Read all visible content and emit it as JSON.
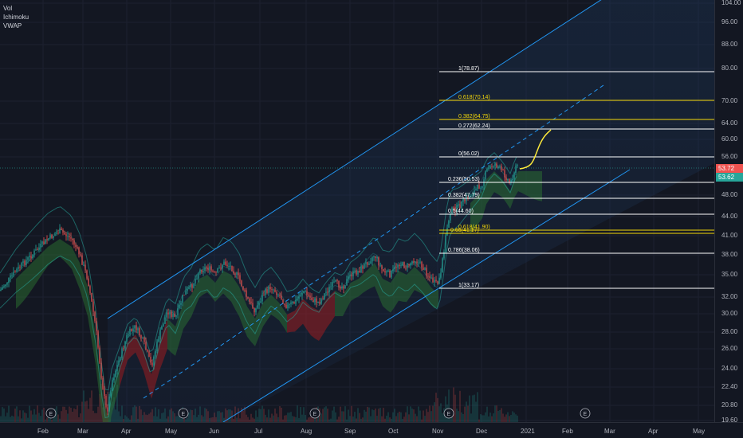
{
  "indicators": [
    "Vol",
    "Ichimoku",
    "VWAP"
  ],
  "price_axis": {
    "ticks": [
      "104.00",
      "96.00",
      "88.00",
      "80.00",
      "70.00",
      "64.00",
      "60.00",
      "56.00",
      "48.00",
      "44.00",
      "41.00",
      "38.00",
      "35.00",
      "32.00",
      "30.00",
      "28.00",
      "26.00",
      "24.00",
      "22.40",
      "20.80",
      "19.60"
    ],
    "last_price": "53.72",
    "last_price_color": "#ef5350",
    "alt_price": "53.62",
    "alt_price_color": "#26a69a"
  },
  "time_axis": {
    "ticks": [
      "Feb",
      "Mar",
      "Apr",
      "May",
      "Jun",
      "Jul",
      "Aug",
      "Sep",
      "Oct",
      "Nov",
      "Dec",
      "2021",
      "Feb",
      "Mar",
      "Apr",
      "May"
    ]
  },
  "event_markers": [
    "E",
    "E",
    "E",
    "E",
    "E"
  ],
  "fib_levels": [
    {
      "label": "1(78.87)",
      "color": "#ffffff"
    },
    {
      "label": "0.618(70.14)",
      "color": "#f5d90a"
    },
    {
      "label": "0.382(64.75)",
      "color": "#f5d90a"
    },
    {
      "label": "0.272(62.24)",
      "color": "#ffffff"
    },
    {
      "label": "0(56.02)",
      "color": "#ffffff"
    },
    {
      "label": "0.236(50.53)",
      "color": "#ffffff"
    },
    {
      "label": "0.382(47.79)",
      "color": "#ffffff"
    },
    {
      "label": "0.5(44.60)",
      "color": "#ffffff"
    },
    {
      "label": "0.618(41.90)",
      "color": "#f5d90a"
    },
    {
      "label": "0.65(41.17)",
      "color": "#f5d90a"
    },
    {
      "label": "0.786(38.06)",
      "color": "#ffffff"
    },
    {
      "label": "1(33.17)",
      "color": "#ffffff"
    }
  ],
  "colors": {
    "background": "#131722",
    "channel": "#2196f3",
    "up": "#26a69a",
    "down": "#ef5350",
    "cloud_bull": "#2e7d32",
    "cloud_bear": "#b71c1c",
    "projection": "#ffeb3b"
  }
}
